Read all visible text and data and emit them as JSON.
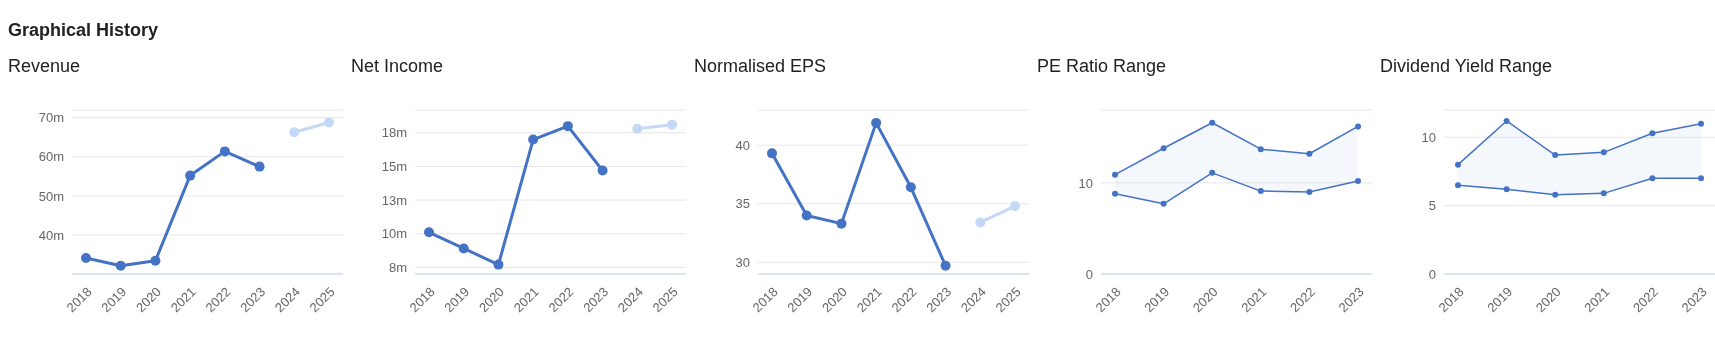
{
  "chart_data": [
    {
      "type": "line",
      "title": "Graphical History",
      "subtitle": "Revenue",
      "categories": [
        "2018",
        "2019",
        "2020",
        "2021",
        "2022",
        "2023",
        "2024",
        "2025"
      ],
      "series": [
        {
          "color": "#4472c4",
          "values": [
            34.1,
            32.1,
            33.4,
            55.2,
            61.4,
            57.5,
            null,
            null
          ]
        },
        {
          "color": "#c5d8f5",
          "values": [
            null,
            null,
            null,
            null,
            null,
            null,
            66.3,
            68.8
          ]
        }
      ],
      "ylim": [
        30,
        72
      ],
      "yticks": [
        {
          "value": 40,
          "label": "40m"
        },
        {
          "value": 50,
          "label": "50m"
        },
        {
          "value": 60,
          "label": "60m"
        },
        {
          "value": 70,
          "label": "70m"
        }
      ],
      "grid": "y",
      "marker": "circle",
      "line_style": "solid"
    },
    {
      "type": "line",
      "title": "Net Income",
      "categories": [
        "2018",
        "2019",
        "2020",
        "2021",
        "2022",
        "2023",
        "2024",
        "2025"
      ],
      "series": [
        {
          "color": "#4472c4",
          "values": [
            10.1,
            8.9,
            7.7,
            17.0,
            18.0,
            14.7,
            null,
            null
          ]
        },
        {
          "color": "#c5d8f5",
          "values": [
            null,
            null,
            null,
            null,
            null,
            null,
            17.8,
            18.1
          ]
        }
      ],
      "ylim": [
        7,
        19.2
      ],
      "yticks": [
        {
          "value": 7.5,
          "label": "8m"
        },
        {
          "value": 10,
          "label": "10m"
        },
        {
          "value": 12.5,
          "label": "13m"
        },
        {
          "value": 15,
          "label": "15m"
        },
        {
          "value": 17.5,
          "label": "18m"
        }
      ],
      "grid": "y",
      "marker": "circle",
      "line_style": "solid"
    },
    {
      "type": "line",
      "title": "Normalised EPS",
      "categories": [
        "2018",
        "2019",
        "2020",
        "2021",
        "2022",
        "2023",
        "2024",
        "2025"
      ],
      "series": [
        {
          "color": "#4472c4",
          "values": [
            39.3,
            34.0,
            33.3,
            41.9,
            36.4,
            29.7,
            null,
            null
          ]
        },
        {
          "color": "#c5d8f5",
          "values": [
            null,
            null,
            null,
            null,
            null,
            null,
            33.4,
            34.8
          ]
        }
      ],
      "ylim": [
        29,
        43
      ],
      "yticks": [
        30,
        35,
        40
      ],
      "grid": "y",
      "marker": "circle",
      "line_style": "solid"
    },
    {
      "type": "line",
      "title": "PE Ratio Range",
      "categories": [
        "2018",
        "2019",
        "2020",
        "2021",
        "2022",
        "2023"
      ],
      "series": [
        {
          "color": "#4472c4",
          "values": [
            10.9,
            13.8,
            16.6,
            13.7,
            13.2,
            16.2
          ],
          "lower": [
            8.8,
            7.7,
            11.1,
            9.1,
            9.0,
            10.2
          ],
          "upper": [
            10.9,
            13.8,
            16.6,
            13.7,
            13.2,
            16.2
          ]
        },
        {
          "color": "#4472c4",
          "values": [
            8.8,
            7.7,
            11.1,
            9.1,
            9.0,
            10.2
          ]
        }
      ],
      "ylim": [
        0,
        18
      ],
      "yticks": [
        0,
        10
      ],
      "grid": "y",
      "marker": "circle",
      "line_style": "solid"
    },
    {
      "type": "line",
      "title": "Dividend Yield Range",
      "categories": [
        "2018",
        "2019",
        "2020",
        "2021",
        "2022",
        "2023"
      ],
      "series": [
        {
          "color": "#4472c4",
          "values": [
            8.0,
            11.2,
            8.7,
            8.9,
            10.3,
            11.0
          ],
          "lower": [
            6.5,
            6.2,
            5.8,
            5.9,
            7.0,
            7.0
          ],
          "upper": [
            8.0,
            11.2,
            8.7,
            8.9,
            10.3,
            11.0
          ]
        },
        {
          "color": "#4472c4",
          "values": [
            6.5,
            6.2,
            5.8,
            5.9,
            7.0,
            7.0
          ]
        }
      ],
      "ylim": [
        0,
        12
      ],
      "yticks": [
        0,
        5,
        10
      ],
      "grid": "y",
      "marker": "circle",
      "line_style": "solid"
    }
  ]
}
